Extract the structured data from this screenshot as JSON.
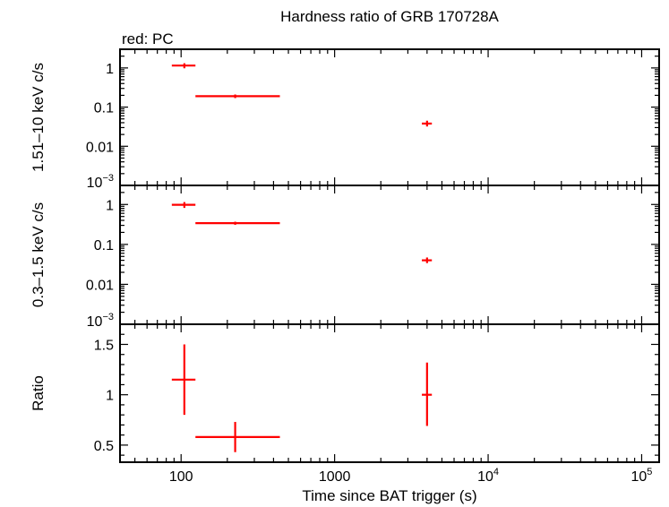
{
  "chart_data": {
    "type": "scatter",
    "title": "Hardness ratio of GRB 170728A",
    "subtitle": "red: PC",
    "xlabel": "Time since BAT trigger (s)",
    "x_scale": "log",
    "xlim": [
      40,
      130000
    ],
    "x_ticks": [
      {
        "v": 100,
        "base": "100",
        "exp": ""
      },
      {
        "v": 1000,
        "base": "1000",
        "exp": ""
      },
      {
        "v": 10000,
        "base": "10",
        "exp": "4"
      },
      {
        "v": 100000,
        "base": "10",
        "exp": "5"
      }
    ],
    "series_color": "#ff0000",
    "panels": [
      {
        "id": "hard",
        "ylabel": "1.51–10 keV c/s",
        "y_scale": "log",
        "ylim": [
          0.001,
          3
        ],
        "y_ticks": [
          {
            "v": 1,
            "base": "1",
            "exp": ""
          },
          {
            "v": 0.1,
            "base": "0.1",
            "exp": ""
          },
          {
            "v": 0.01,
            "base": "0.01",
            "exp": ""
          },
          {
            "v": 0.001,
            "base": "10",
            "exp": "−3"
          }
        ],
        "points": [
          {
            "x": 105,
            "xlo": 87,
            "xhi": 124,
            "y": 1.15,
            "ylo": 0.98,
            "yhi": 1.32
          },
          {
            "x": 225,
            "xlo": 124,
            "xhi": 440,
            "y": 0.19,
            "ylo": 0.17,
            "yhi": 0.21
          },
          {
            "x": 4000,
            "xlo": 3700,
            "xhi": 4300,
            "y": 0.038,
            "ylo": 0.032,
            "yhi": 0.045
          }
        ]
      },
      {
        "id": "soft",
        "ylabel": "0.3–1.5 keV c/s",
        "y_scale": "log",
        "ylim": [
          0.001,
          3
        ],
        "y_ticks": [
          {
            "v": 1,
            "base": "1",
            "exp": ""
          },
          {
            "v": 0.1,
            "base": "0.1",
            "exp": ""
          },
          {
            "v": 0.01,
            "base": "0.01",
            "exp": ""
          },
          {
            "v": 0.001,
            "base": "10",
            "exp": "−3"
          }
        ],
        "points": [
          {
            "x": 105,
            "xlo": 87,
            "xhi": 124,
            "y": 0.98,
            "ylo": 0.82,
            "yhi": 1.15
          },
          {
            "x": 225,
            "xlo": 124,
            "xhi": 440,
            "y": 0.34,
            "ylo": 0.31,
            "yhi": 0.37
          },
          {
            "x": 4000,
            "xlo": 3700,
            "xhi": 4300,
            "y": 0.04,
            "ylo": 0.034,
            "yhi": 0.047
          }
        ]
      },
      {
        "id": "ratio",
        "ylabel": "Ratio",
        "y_scale": "linear",
        "ylim": [
          0.33,
          1.7
        ],
        "y_ticks": [
          {
            "v": 1.5,
            "base": "1.5",
            "exp": ""
          },
          {
            "v": 1,
            "base": "1",
            "exp": ""
          },
          {
            "v": 0.5,
            "base": "0.5",
            "exp": ""
          }
        ],
        "points": [
          {
            "x": 105,
            "xlo": 87,
            "xhi": 124,
            "y": 1.15,
            "ylo": 0.8,
            "yhi": 1.5
          },
          {
            "x": 225,
            "xlo": 124,
            "xhi": 440,
            "y": 0.58,
            "ylo": 0.43,
            "yhi": 0.73
          },
          {
            "x": 4000,
            "xlo": 3700,
            "xhi": 4300,
            "y": 1.0,
            "ylo": 0.69,
            "yhi": 1.32
          }
        ]
      }
    ]
  }
}
